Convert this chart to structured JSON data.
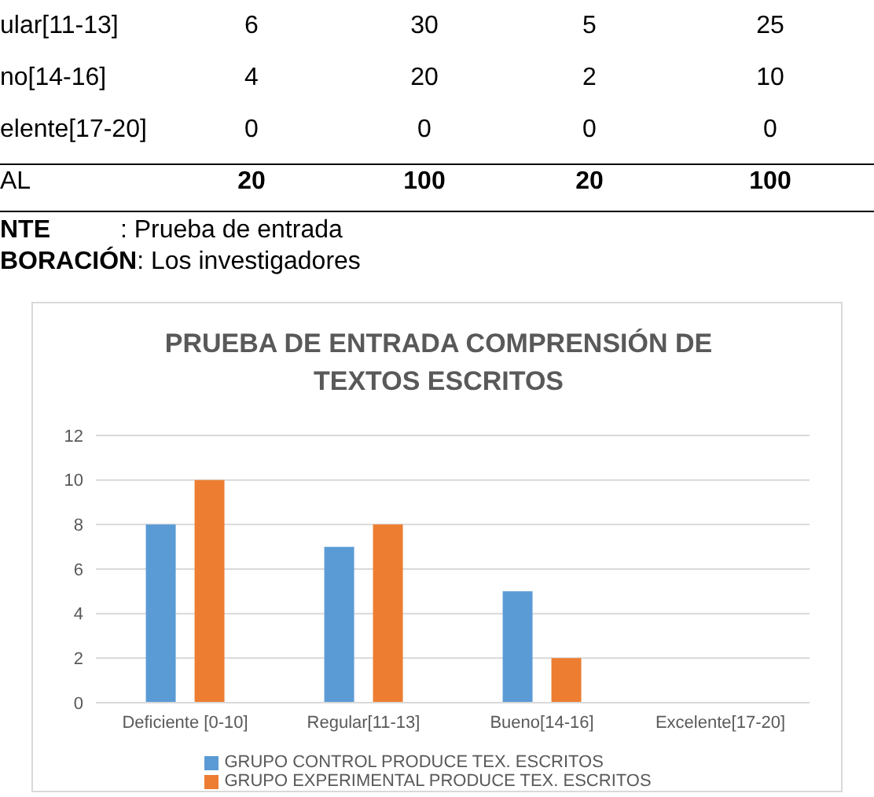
{
  "chart_data": {
    "type": "bar",
    "title": "PRUEBA DE ENTRADA COMPRENSIÓN DE TEXTOS ESCRITOS",
    "categories": [
      "Deficiente [0-10]",
      "Regular[11-13]",
      "Bueno[14-16]",
      "Excelente[17-20]"
    ],
    "series": [
      {
        "name": "GRUPO CONTROL PRODUCE TEX. ESCRITOS",
        "color": "#5b9bd5",
        "values": [
          8,
          7,
          5,
          0
        ]
      },
      {
        "name": "GRUPO EXPERIMENTAL PRODUCE TEX. ESCRITOS",
        "color": "#ed7d31",
        "values": [
          10,
          8,
          2,
          0
        ]
      }
    ],
    "ylim": [
      0,
      12
    ],
    "yticks": [
      0,
      2,
      4,
      6,
      8,
      10,
      12
    ],
    "grid": "y",
    "legend": "bottom",
    "annotations": [
      "ular[11-13]",
      "6",
      "30",
      "5",
      "25",
      "no[14-16]",
      "4",
      "20",
      "2",
      "10",
      "elente[17-20]",
      "0",
      "0",
      "0",
      "0",
      "AL",
      "20",
      "100",
      "20",
      "100",
      "NTE          : Prueba de entrada",
      "BORACIÓN: Los investigadores"
    ]
  }
}
